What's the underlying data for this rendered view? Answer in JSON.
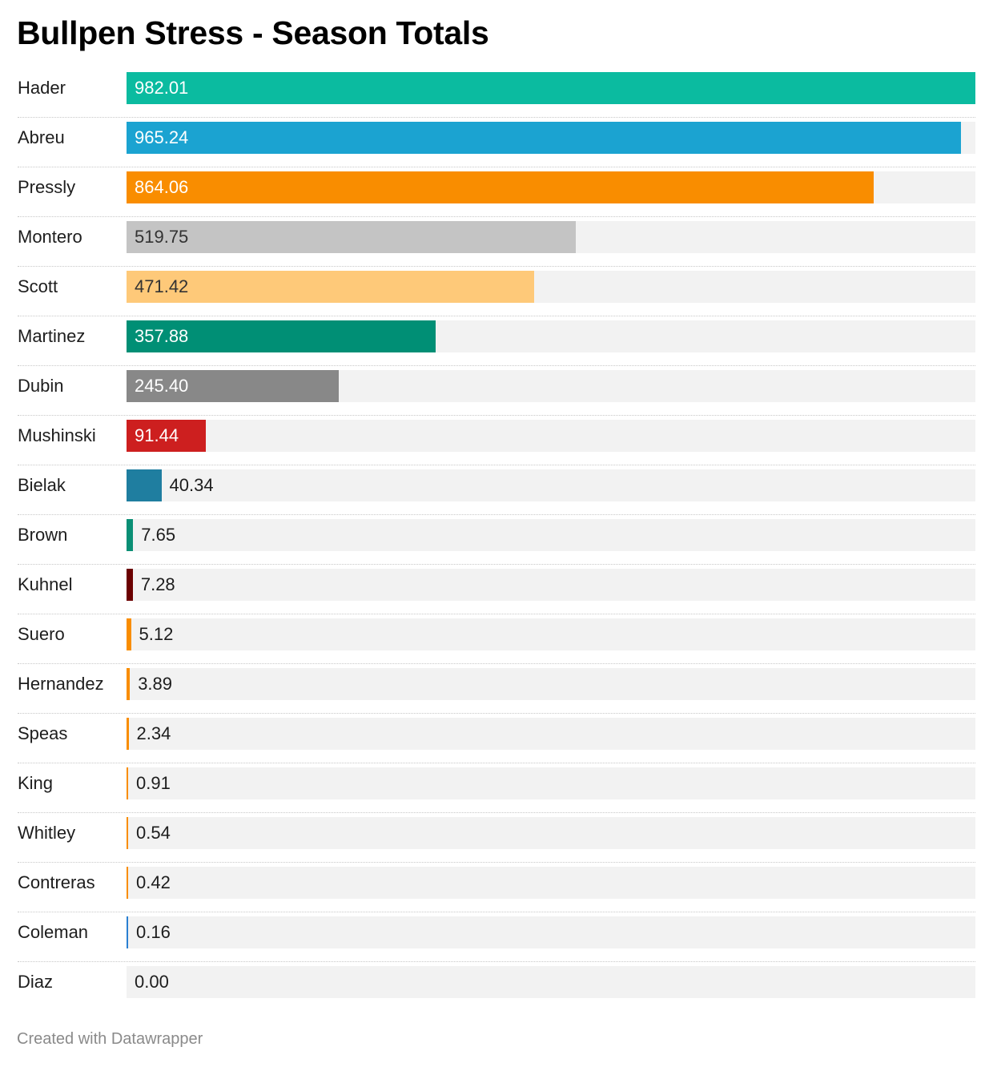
{
  "chart_data": {
    "type": "bar",
    "orientation": "horizontal",
    "title": "Bullpen Stress - Season Totals",
    "xlim": [
      0,
      982.01
    ],
    "grid": false,
    "categories": [
      "Hader",
      "Abreu",
      "Pressly",
      "Montero",
      "Scott",
      "Martinez",
      "Dubin",
      "Mushinski",
      "Bielak",
      "Brown",
      "Kuhnel",
      "Suero",
      "Hernandez",
      "Speas",
      "King",
      "Whitley",
      "Contreras",
      "Coleman",
      "Diaz"
    ],
    "values": [
      982.01,
      965.24,
      864.06,
      519.75,
      471.42,
      357.88,
      245.4,
      91.44,
      40.34,
      7.65,
      7.28,
      5.12,
      3.89,
      2.34,
      0.91,
      0.54,
      0.42,
      0.16,
      0.0
    ],
    "value_labels": [
      "982.01",
      "965.24",
      "864.06",
      "519.75",
      "471.42",
      "357.88",
      "245.40",
      "91.44",
      "40.34",
      "7.65",
      "7.28",
      "5.12",
      "3.89",
      "2.34",
      "0.91",
      "0.54",
      "0.42",
      "0.16",
      "0.00"
    ],
    "colors": [
      "#0bbba0",
      "#1ba3d1",
      "#f98d00",
      "#c4c4c4",
      "#fec979",
      "#008f75",
      "#888888",
      "#cd1f1f",
      "#1f7ea0",
      "#0a8f75",
      "#6b0000",
      "#f98d00",
      "#f98d00",
      "#f98d00",
      "#f98d00",
      "#f98d00",
      "#f98d00",
      "#2a7fd1",
      "#f98d00"
    ],
    "label_colors": [
      "#ffffff",
      "#ffffff",
      "#ffffff",
      "#333333",
      "#333333",
      "#ffffff",
      "#ffffff",
      "#ffffff",
      "#1d1d1d",
      "#1d1d1d",
      "#1d1d1d",
      "#1d1d1d",
      "#1d1d1d",
      "#1d1d1d",
      "#1d1d1d",
      "#1d1d1d",
      "#1d1d1d",
      "#1d1d1d",
      "#1d1d1d"
    ]
  },
  "footer": {
    "credit": "Created with Datawrapper"
  }
}
